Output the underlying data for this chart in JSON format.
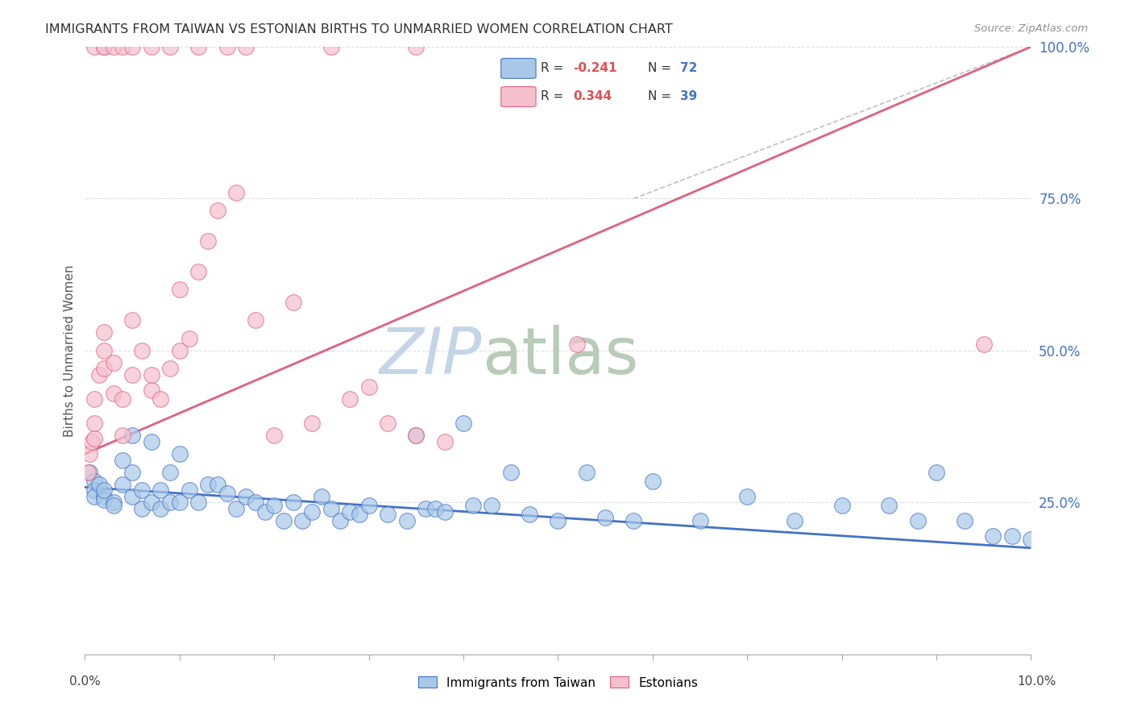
{
  "title": "IMMIGRANTS FROM TAIWAN VS ESTONIAN BIRTHS TO UNMARRIED WOMEN CORRELATION CHART",
  "source": "Source: ZipAtlas.com",
  "ylabel": "Births to Unmarried Women",
  "right_yticks": [
    "100.0%",
    "75.0%",
    "50.0%",
    "25.0%"
  ],
  "right_ytick_vals": [
    1.0,
    0.75,
    0.5,
    0.25
  ],
  "legend_blue_label": "Immigrants from Taiwan",
  "legend_pink_label": "Estonians",
  "blue_color": "#a8c8e8",
  "blue_line_color": "#4472c4",
  "pink_color": "#f4c0ce",
  "pink_line_color": "#e06080",
  "dashed_line_color": "#c0c0c0",
  "grid_color": "#dde0e8",
  "watermark_zip_color": "#c5d5e5",
  "watermark_atlas_color": "#c8d8c8",
  "title_color": "#303030",
  "source_color": "#909090",
  "right_tick_color": "#4472c4",
  "xlim": [
    0,
    0.1
  ],
  "ylim": [
    0,
    1.0
  ],
  "blue_trend_x0": 0.0,
  "blue_trend_y0": 0.275,
  "blue_trend_x1": 0.1,
  "blue_trend_y1": 0.175,
  "pink_trend_x0": 0.0,
  "pink_trend_y0": 0.33,
  "pink_trend_x1": 0.1,
  "pink_trend_y1": 1.0,
  "dashed_trend_x0": 0.058,
  "dashed_trend_y0": 0.75,
  "dashed_trend_x1": 0.1,
  "dashed_trend_y1": 1.0,
  "blue_scatter_x": [
    0.0005,
    0.001,
    0.001,
    0.001,
    0.0015,
    0.002,
    0.002,
    0.002,
    0.003,
    0.003,
    0.004,
    0.004,
    0.005,
    0.005,
    0.005,
    0.006,
    0.006,
    0.007,
    0.007,
    0.008,
    0.008,
    0.009,
    0.009,
    0.01,
    0.01,
    0.011,
    0.012,
    0.013,
    0.014,
    0.015,
    0.016,
    0.017,
    0.018,
    0.019,
    0.02,
    0.021,
    0.022,
    0.023,
    0.024,
    0.025,
    0.026,
    0.027,
    0.028,
    0.029,
    0.03,
    0.032,
    0.034,
    0.035,
    0.036,
    0.037,
    0.038,
    0.04,
    0.041,
    0.043,
    0.045,
    0.047,
    0.05,
    0.053,
    0.055,
    0.058,
    0.06,
    0.065,
    0.07,
    0.075,
    0.08,
    0.085,
    0.088,
    0.09,
    0.093,
    0.096,
    0.098,
    0.1
  ],
  "blue_scatter_y": [
    0.3,
    0.285,
    0.27,
    0.26,
    0.28,
    0.26,
    0.255,
    0.27,
    0.25,
    0.245,
    0.32,
    0.28,
    0.36,
    0.3,
    0.26,
    0.27,
    0.24,
    0.35,
    0.25,
    0.27,
    0.24,
    0.3,
    0.25,
    0.33,
    0.25,
    0.27,
    0.25,
    0.28,
    0.28,
    0.265,
    0.24,
    0.26,
    0.25,
    0.235,
    0.245,
    0.22,
    0.25,
    0.22,
    0.235,
    0.26,
    0.24,
    0.22,
    0.235,
    0.23,
    0.245,
    0.23,
    0.22,
    0.36,
    0.24,
    0.24,
    0.235,
    0.38,
    0.245,
    0.245,
    0.3,
    0.23,
    0.22,
    0.3,
    0.225,
    0.22,
    0.285,
    0.22,
    0.26,
    0.22,
    0.245,
    0.245,
    0.22,
    0.3,
    0.22,
    0.195,
    0.195,
    0.19
  ],
  "pink_scatter_x": [
    0.0003,
    0.0005,
    0.0007,
    0.001,
    0.001,
    0.001,
    0.0015,
    0.002,
    0.002,
    0.002,
    0.003,
    0.003,
    0.004,
    0.004,
    0.005,
    0.005,
    0.006,
    0.007,
    0.007,
    0.008,
    0.009,
    0.01,
    0.01,
    0.011,
    0.012,
    0.013,
    0.014,
    0.016,
    0.018,
    0.02,
    0.022,
    0.024,
    0.028,
    0.03,
    0.032,
    0.035,
    0.038,
    0.052,
    0.095
  ],
  "pink_scatter_y": [
    0.3,
    0.33,
    0.35,
    0.355,
    0.38,
    0.42,
    0.46,
    0.47,
    0.5,
    0.53,
    0.48,
    0.43,
    0.36,
    0.42,
    0.55,
    0.46,
    0.5,
    0.435,
    0.46,
    0.42,
    0.47,
    0.6,
    0.5,
    0.52,
    0.63,
    0.68,
    0.73,
    0.76,
    0.55,
    0.36,
    0.58,
    0.38,
    0.42,
    0.44,
    0.38,
    0.36,
    0.35,
    0.51,
    0.51
  ],
  "pink_top_scatter_x": [
    0.001,
    0.002,
    0.002,
    0.003,
    0.004,
    0.005,
    0.007,
    0.009,
    0.012,
    0.015,
    0.017,
    0.026,
    0.035
  ],
  "pink_top_scatter_y": [
    1.0,
    1.0,
    1.0,
    1.0,
    1.0,
    1.0,
    1.0,
    1.0,
    1.0,
    1.0,
    1.0,
    1.0,
    1.0
  ]
}
